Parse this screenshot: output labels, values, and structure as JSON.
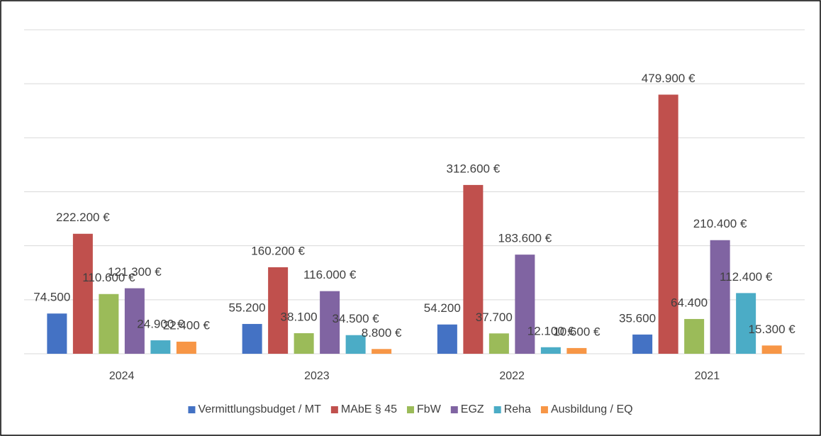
{
  "chart_data": {
    "type": "bar",
    "categories": [
      "2024",
      "2023",
      "2022",
      "2021"
    ],
    "series": [
      {
        "name": "Vermittlungsbudget / MT",
        "color": "#4472c4",
        "values": [
          74500,
          55200,
          54200,
          35600
        ],
        "value_labels": [
          "74.500 €",
          "55.200 €",
          "54.200 €",
          "35.600 €"
        ]
      },
      {
        "name": "MAbE § 45",
        "color": "#c0504d",
        "values": [
          222200,
          160200,
          312600,
          479900
        ],
        "value_labels": [
          "222.200 €",
          "160.200 €",
          "312.600 €",
          "479.900 €"
        ]
      },
      {
        "name": "FbW",
        "color": "#9bbb59",
        "values": [
          110600,
          38100,
          37700,
          64400
        ],
        "value_labels": [
          "110.600 €",
          "38.100 €",
          "37.700 €",
          "64.400 €"
        ]
      },
      {
        "name": "EGZ",
        "color": "#8064a2",
        "values": [
          121300,
          116000,
          183600,
          210400
        ],
        "value_labels": [
          "121.300 €",
          "116.000 €",
          "183.600 €",
          "210.400 €"
        ]
      },
      {
        "name": "Reha",
        "color": "#4bacc6",
        "values": [
          24900,
          34500,
          12100,
          112400
        ],
        "value_labels": [
          "24.900 €",
          "34.500 €",
          "12.100 €",
          "112.400 €"
        ]
      },
      {
        "name": "Ausbildung / EQ",
        "color": "#f79646",
        "values": [
          22400,
          8800,
          10600,
          15300
        ],
        "value_labels": [
          "22.400 €",
          "8.800 €",
          "10.600 €",
          "15.300 €"
        ]
      }
    ],
    "ylim": [
      0,
      600000
    ],
    "yticks": [
      0,
      100000,
      200000,
      300000,
      400000,
      500000,
      600000
    ],
    "grid": true,
    "legend": "bottom"
  }
}
